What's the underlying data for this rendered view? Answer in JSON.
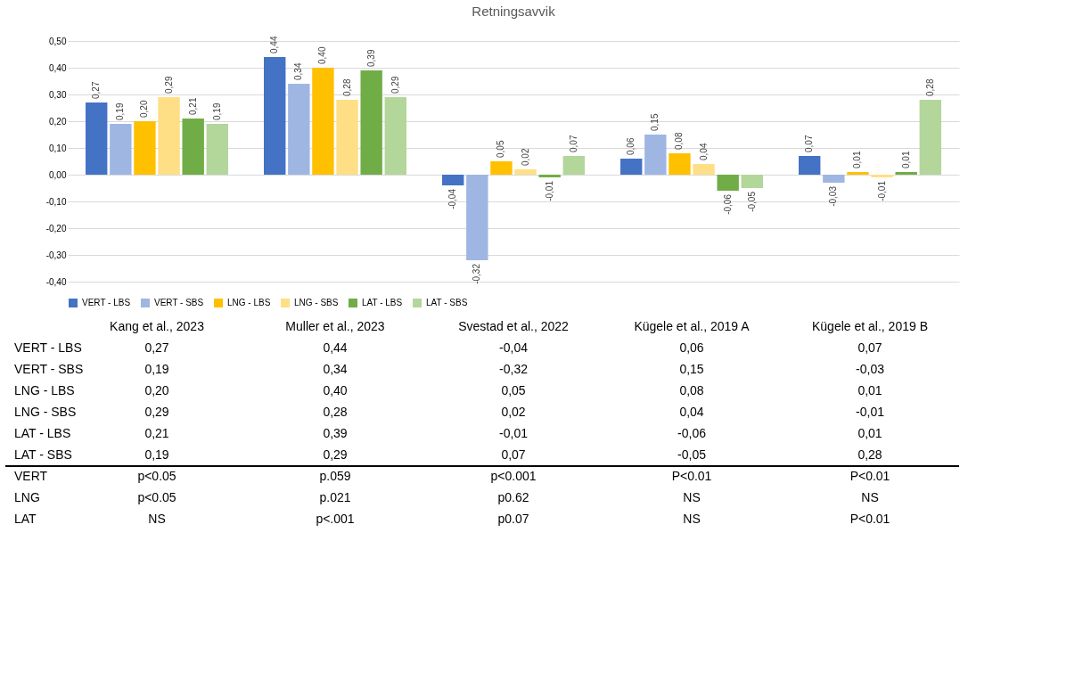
{
  "chart_data": {
    "type": "bar",
    "title": "Retningsavvik",
    "categories": [
      "Kang et al., 2023",
      "Muller et al., 2023",
      "Svestad et al., 2022",
      "Kügele et al., 2019 A",
      "Kügele et al., 2019 B"
    ],
    "series": [
      {
        "name": "VERT - LBS",
        "color": "#4472c4",
        "values": [
          0.27,
          0.44,
          -0.04,
          0.06,
          0.07
        ],
        "value_labels": [
          "0,27",
          "0,44",
          "-0,04",
          "0,06",
          "0,07"
        ]
      },
      {
        "name": "VERT - SBS",
        "color": "#9fb6e3",
        "values": [
          0.19,
          0.34,
          -0.32,
          0.15,
          -0.03
        ],
        "value_labels": [
          "0,19",
          "0,34",
          "-0,32",
          "0,15",
          "-0,03"
        ]
      },
      {
        "name": "LNG - LBS",
        "color": "#ffc000",
        "values": [
          0.2,
          0.4,
          0.05,
          0.08,
          0.01
        ],
        "value_labels": [
          "0,20",
          "0,40",
          "0,05",
          "0,08",
          "0,01"
        ]
      },
      {
        "name": "LNG - SBS",
        "color": "#ffdf85",
        "values": [
          0.29,
          0.28,
          0.02,
          0.04,
          -0.01
        ],
        "value_labels": [
          "0,29",
          "0,28",
          "0,02",
          "0,04",
          "-0,01"
        ]
      },
      {
        "name": "LAT - LBS",
        "color": "#70ad47",
        "values": [
          0.21,
          0.39,
          -0.01,
          -0.06,
          0.01
        ],
        "value_labels": [
          "0,21",
          "0,39",
          "-0,01",
          "-0,06",
          "0,01"
        ]
      },
      {
        "name": "LAT - SBS",
        "color": "#b3d69b",
        "values": [
          0.19,
          0.29,
          0.07,
          -0.05,
          0.28
        ],
        "value_labels": [
          "0,19",
          "0,29",
          "0,07",
          "-0,05",
          "0,28"
        ]
      }
    ],
    "ylim": [
      -0.4,
      0.5
    ],
    "yticks": [
      {
        "value": -0.4,
        "label": "-0,40"
      },
      {
        "value": -0.3,
        "label": "-0,30"
      },
      {
        "value": -0.2,
        "label": "-0,20"
      },
      {
        "value": -0.1,
        "label": "-0,10"
      },
      {
        "value": 0,
        "label": "0,00"
      },
      {
        "value": 0.1,
        "label": "0,10"
      },
      {
        "value": 0.2,
        "label": "0,20"
      },
      {
        "value": 0.3,
        "label": "0,30"
      },
      {
        "value": 0.4,
        "label": "0,40"
      },
      {
        "value": 0.5,
        "label": "0,50"
      }
    ],
    "grid": "y",
    "legend": "bottom",
    "tick_labels": "y",
    "annotations": [
      "VERT",
      "p<0.05",
      "p.059",
      "p<0.001",
      "P<0.01",
      "P<0.01",
      "LNG",
      "p<0.05",
      "p.021",
      "p0.62",
      "NS",
      "NS",
      "LAT",
      "NS",
      "p<.001",
      "p0.07",
      "NS",
      "P<0.01"
    ]
  }
}
